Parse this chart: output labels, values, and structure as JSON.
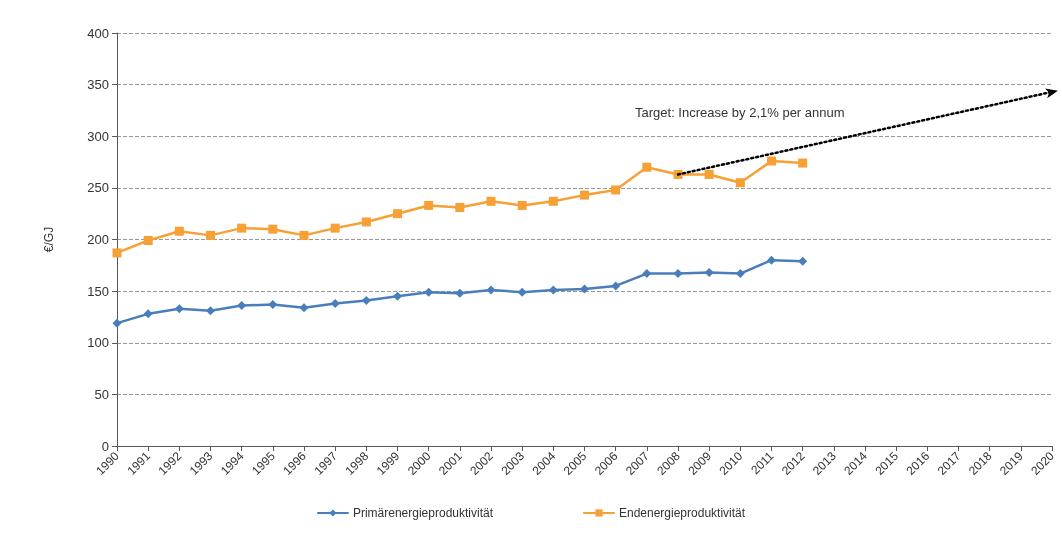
{
  "chart_data": {
    "type": "line",
    "ylabel": "€/GJ",
    "categories": [
      "1990",
      "1991",
      "1992",
      "1993",
      "1994",
      "1995",
      "1996",
      "1997",
      "1998",
      "1999",
      "2000",
      "2001",
      "2002",
      "2003",
      "2004",
      "2005",
      "2006",
      "2007",
      "2008",
      "2009",
      "2010",
      "2011",
      "2012",
      "2013",
      "2014",
      "2015",
      "2016",
      "2017",
      "2018",
      "2019",
      "2020"
    ],
    "series": [
      {
        "name": "Primärenergieproduktivität",
        "color": "#4a7ebb",
        "marker": "diamond",
        "values": [
          119,
          128,
          133,
          131,
          136,
          137,
          134,
          138,
          141,
          145,
          149,
          148,
          151,
          149,
          151,
          152,
          155,
          167,
          167,
          168,
          167,
          180,
          179,
          null,
          null,
          null,
          null,
          null,
          null,
          null,
          null
        ]
      },
      {
        "name": "Endenergieproduktivität",
        "color": "#f7a035",
        "marker": "square",
        "values": [
          187,
          199,
          208,
          204,
          211,
          210,
          204,
          211,
          217,
          225,
          233,
          231,
          237,
          233,
          237,
          243,
          248,
          270,
          263,
          263,
          255,
          276,
          274,
          null,
          null,
          null,
          null,
          null,
          null,
          null,
          null
        ]
      },
      {
        "color": "#000000",
        "line_style": "dotted",
        "values": [
          null,
          null,
          null,
          null,
          null,
          null,
          null,
          null,
          null,
          null,
          null,
          null,
          null,
          null,
          null,
          null,
          null,
          null,
          263,
          null,
          null,
          null,
          null,
          null,
          null,
          null,
          null,
          null,
          null,
          null,
          343
        ]
      }
    ],
    "annotations": [
      "Target: Increase by 2,1% per annum"
    ],
    "ylim": [
      0,
      400
    ],
    "yticks": [
      0,
      50,
      100,
      150,
      200,
      250,
      300,
      350,
      400
    ],
    "grid": "y",
    "legend": "bottom"
  }
}
